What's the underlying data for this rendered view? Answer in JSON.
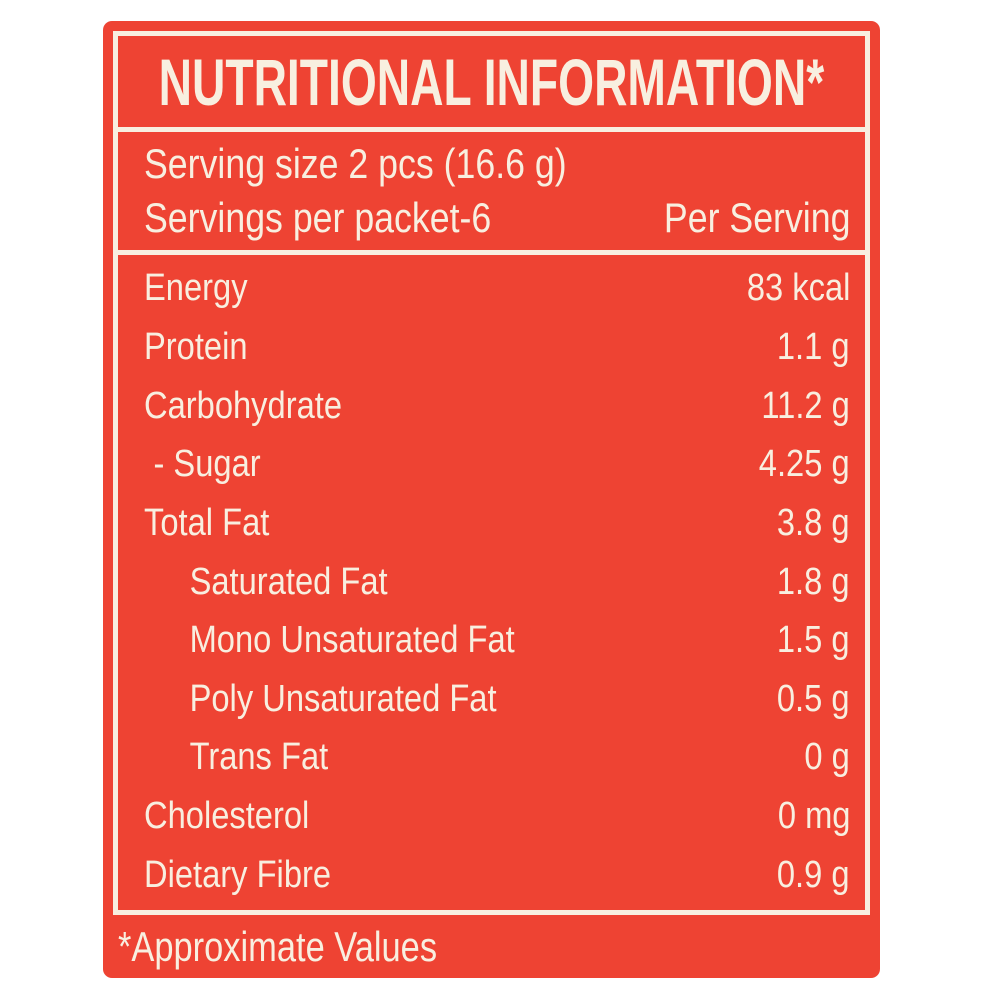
{
  "colors": {
    "panel_red": "#EE4333",
    "text_cream": "#F8EFE0"
  },
  "label": {
    "title": "NUTRITIONAL INFORMATION*",
    "serving": {
      "size_line": "Serving size 2 pcs (16.6 g)",
      "per_packet_line": "Servings per packet-6",
      "column_header": "Per Serving"
    },
    "table": {
      "rows": [
        {
          "name": "Energy",
          "value": "83 kcal",
          "indent": 0
        },
        {
          "name": "Protein",
          "value": "1.1 g",
          "indent": 0
        },
        {
          "name": "Carbohydrate",
          "value": "11.2 g",
          "indent": 0
        },
        {
          "name": "- Sugar",
          "value": "4.25 g",
          "indent": 1
        },
        {
          "name": "Total Fat",
          "value": "3.8 g",
          "indent": 0
        },
        {
          "name": "Saturated Fat",
          "value": "1.8 g",
          "indent": 2
        },
        {
          "name": "Mono Unsaturated Fat",
          "value": "1.5 g",
          "indent": 2
        },
        {
          "name": "Poly Unsaturated Fat",
          "value": "0.5 g",
          "indent": 2
        },
        {
          "name": "Trans Fat",
          "value": "0 g",
          "indent": 2
        },
        {
          "name": "Cholesterol",
          "value": "0 mg",
          "indent": 0
        },
        {
          "name": "Dietary Fibre",
          "value": "0.9 g",
          "indent": 0
        }
      ]
    },
    "footnote": "*Approximate Values"
  }
}
